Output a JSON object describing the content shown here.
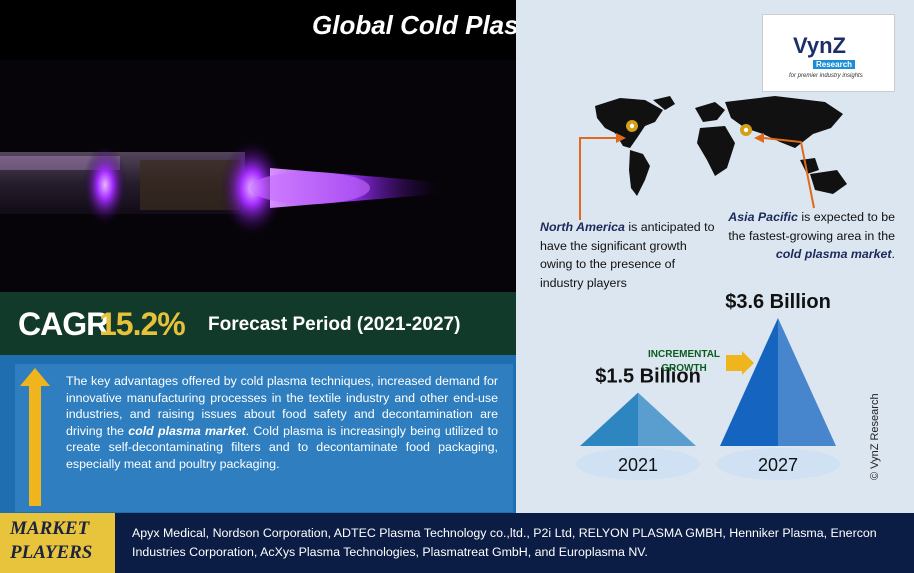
{
  "title": "Global Cold Plasma Market",
  "logo": {
    "name": "VynZ",
    "sub": "Research",
    "tagline": "for premier industry insights"
  },
  "cagr": {
    "label": "CAGR",
    "value": "15.2%",
    "forecast": "Forecast Period (2021-2027)"
  },
  "description": {
    "before": "The key advantages offered by cold plasma techniques, increased demand for innovative manufacturing processes in the textile industry and other end-use industries, and raising issues about food safety and decontamination are driving the ",
    "emph": "cold plasma market",
    "after": ". Cold plasma is increasingly being utilized to create self-decontaminating filters and to decontaminate food packaging, especially meat and poultry packaging."
  },
  "regions": {
    "north_america": {
      "name": "North America",
      "text": " is anticipated to have the significant growth owing to the presence of industry players"
    },
    "asia_pacific": {
      "name": "Asia Pacific",
      "text1": " is expected to be the fastest-growing area in the ",
      "emph": "cold plasma market",
      "text2": "."
    }
  },
  "incremental_label": {
    "line1": "INCREMENTAL",
    "line2": "GROWTH"
  },
  "market_players": {
    "label1": "MARKET",
    "label2": "PLAYERS",
    "list": "Apyx Medical, Nordson Corporation, ADTEC Plasma Technology co.,ltd., P2i Ltd, RELYON PLASMA GMBH, Henniker Plasma, Enercon Industries Corporation, AcXys Plasma Technologies, Plasmatreat GmbH, and Europlasma NV."
  },
  "copyright": "© VynZ Research",
  "chart_data": {
    "type": "bar",
    "categories": [
      "2021",
      "2027"
    ],
    "values": [
      1.5,
      3.6
    ],
    "value_labels": [
      "$1.5 Billion",
      "$3.6 Billion"
    ],
    "unit": "Billion USD",
    "colors": [
      "#2e86c1",
      "#1565c0"
    ]
  }
}
